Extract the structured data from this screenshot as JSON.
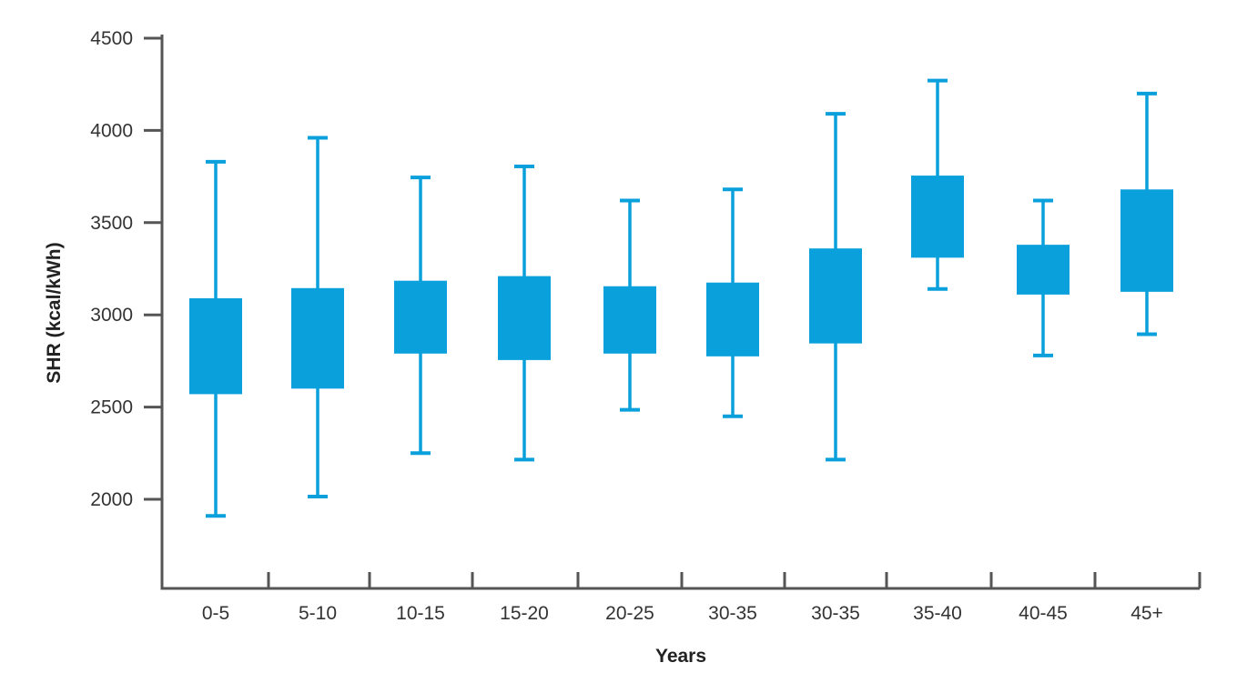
{
  "chart_data": {
    "type": "box",
    "title": "",
    "xlabel": "Years",
    "ylabel": "SHR (kcal/kWh)",
    "ylim": [
      1500,
      4500
    ],
    "yticks": [
      2000,
      2500,
      3000,
      3500,
      4000,
      4500
    ],
    "grid": false,
    "colors": {
      "box": "#0aa0dc",
      "axis": "#555555"
    },
    "categories": [
      "0-5",
      "5-10",
      "10-15",
      "15-20",
      "20-25",
      "30-35",
      "30-35",
      "35-40",
      "40-45",
      "45+"
    ],
    "boxes": [
      {
        "min": 1910,
        "q1": 2570,
        "q3": 3090,
        "max": 3830
      },
      {
        "min": 2015,
        "q1": 2600,
        "q3": 3145,
        "max": 3960
      },
      {
        "min": 2250,
        "q1": 2790,
        "q3": 3185,
        "max": 3745
      },
      {
        "min": 2215,
        "q1": 2755,
        "q3": 3210,
        "max": 3805
      },
      {
        "min": 2485,
        "q1": 2790,
        "q3": 3155,
        "max": 3620
      },
      {
        "min": 2450,
        "q1": 2775,
        "q3": 3175,
        "max": 3680
      },
      {
        "min": 2215,
        "q1": 2845,
        "q3": 3360,
        "max": 4090
      },
      {
        "min": 3140,
        "q1": 3310,
        "q3": 3755,
        "max": 4270
      },
      {
        "min": 2780,
        "q1": 3110,
        "q3": 3380,
        "max": 3620
      },
      {
        "min": 2895,
        "q1": 3125,
        "q3": 3680,
        "max": 4200
      }
    ]
  }
}
